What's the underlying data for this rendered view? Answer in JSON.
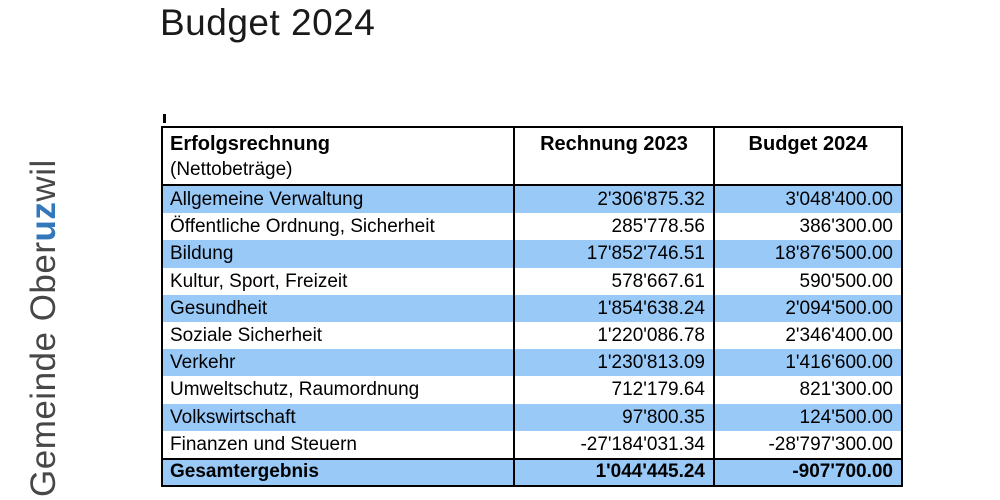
{
  "page": {
    "title": "Budget 2024"
  },
  "logo": {
    "prefix": "Gemeinde Ober",
    "highlight": "uz",
    "suffix": "wil"
  },
  "colors": {
    "row_blue": "#99c9f7",
    "logo_blue": "#3377bd",
    "logo_gray": "#474747",
    "border": "#000000"
  },
  "table": {
    "header": {
      "col1_line1": "Erfolgsrechnung",
      "col1_line2": "(Nettobeträge)",
      "col2": "Rechnung 2023",
      "col3": "Budget 2024"
    },
    "rows": [
      {
        "label": "Allgemeine Verwaltung",
        "rechnung_2023": "2'306'875.32",
        "budget_2024": "3'048'400.00",
        "highlight": true
      },
      {
        "label": "Öffentliche Ordnung, Sicherheit",
        "rechnung_2023": "285'778.56",
        "budget_2024": "386'300.00",
        "highlight": false
      },
      {
        "label": "Bildung",
        "rechnung_2023": "17'852'746.51",
        "budget_2024": "18'876'500.00",
        "highlight": true
      },
      {
        "label": "Kultur, Sport, Freizeit",
        "rechnung_2023": "578'667.61",
        "budget_2024": "590'500.00",
        "highlight": false
      },
      {
        "label": "Gesundheit",
        "rechnung_2023": "1'854'638.24",
        "budget_2024": "2'094'500.00",
        "highlight": true
      },
      {
        "label": "Soziale Sicherheit",
        "rechnung_2023": "1'220'086.78",
        "budget_2024": "2'346'400.00",
        "highlight": false
      },
      {
        "label": "Verkehr",
        "rechnung_2023": "1'230'813.09",
        "budget_2024": "1'416'600.00",
        "highlight": true
      },
      {
        "label": "Umweltschutz, Raumordnung",
        "rechnung_2023": "712'179.64",
        "budget_2024": "821'300.00",
        "highlight": false
      },
      {
        "label": "Volkswirtschaft",
        "rechnung_2023": "97'800.35",
        "budget_2024": "124'500.00",
        "highlight": true
      },
      {
        "label": "Finanzen und Steuern",
        "rechnung_2023": "-27'184'031.34",
        "budget_2024": "-28'797'300.00",
        "highlight": false
      }
    ],
    "total": {
      "label": "Gesamtergebnis",
      "rechnung_2023": "1'044'445.24",
      "budget_2024": "-907'700.00",
      "highlight": true
    }
  }
}
